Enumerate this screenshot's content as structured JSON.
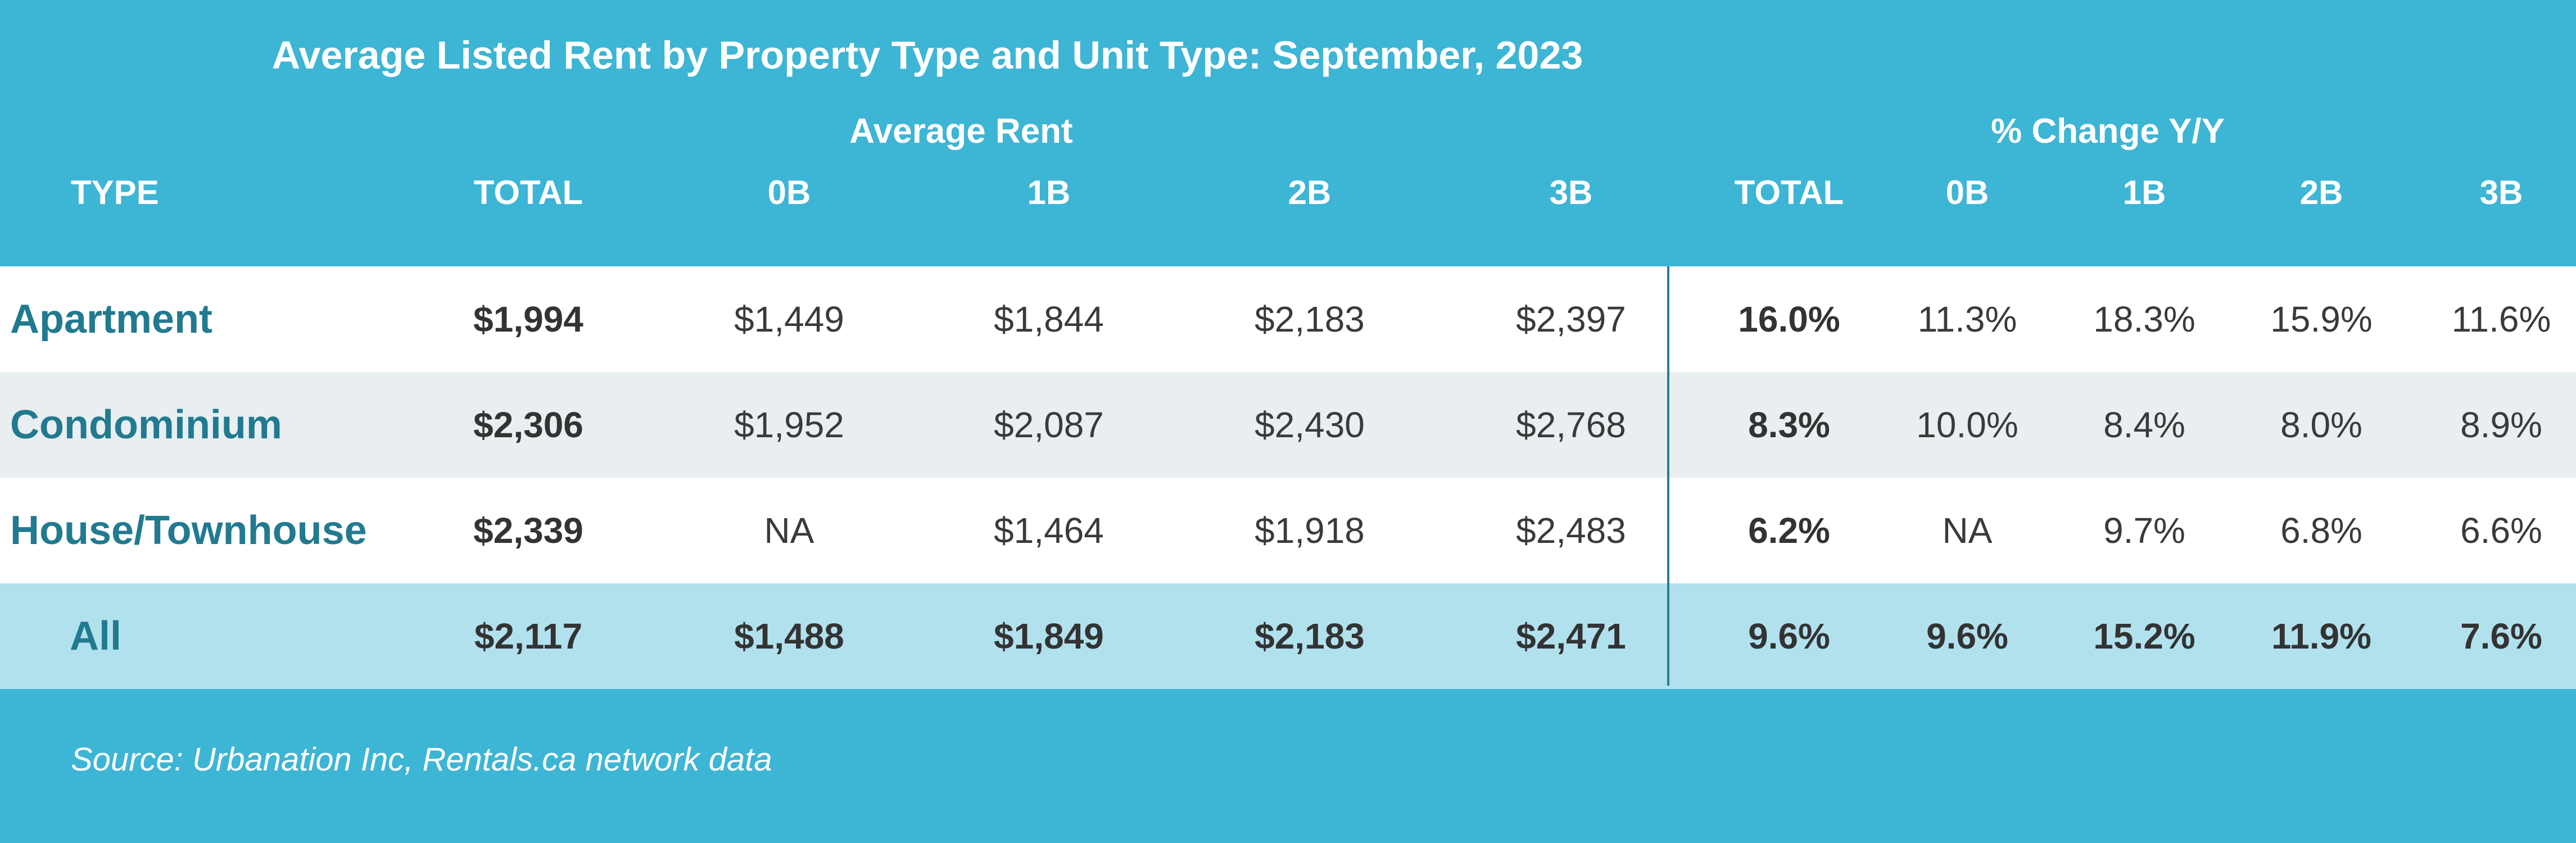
{
  "chart_data": {
    "type": "table",
    "title": "Average Listed Rent by Property Type and Unit Type: September, 2023",
    "column_groups": [
      {
        "label": "Average Rent",
        "columns": [
          "TOTAL",
          "0B",
          "1B",
          "2B",
          "3B"
        ]
      },
      {
        "label": "% Change Y/Y",
        "columns": [
          "TOTAL",
          "0B",
          "1B",
          "2B",
          "3B"
        ]
      }
    ],
    "type_header": "TYPE",
    "columns": [
      "TOTAL",
      "0B",
      "1B",
      "2B",
      "3B",
      "TOTAL",
      "0B",
      "1B",
      "2B",
      "3B"
    ],
    "rows": [
      {
        "type": "Apartment",
        "cells": [
          "$1,994",
          "$1,449",
          "$1,844",
          "$2,183",
          "$2,397",
          "16.0%",
          "11.3%",
          "18.3%",
          "15.9%",
          "11.6%"
        ]
      },
      {
        "type": "Condominium",
        "cells": [
          "$2,306",
          "$1,952",
          "$2,087",
          "$2,430",
          "$2,768",
          "8.3%",
          "10.0%",
          "8.4%",
          "8.0%",
          "8.9%"
        ]
      },
      {
        "type": "House/Townhouse",
        "cells": [
          "$2,339",
          "NA",
          "$1,464",
          "$1,918",
          "$2,483",
          "6.2%",
          "NA",
          "9.7%",
          "6.8%",
          "6.6%"
        ]
      },
      {
        "type": "All",
        "cells": [
          "$2,117",
          "$1,488",
          "$1,849",
          "$2,183",
          "$2,471",
          "9.6%",
          "9.6%",
          "15.2%",
          "11.9%",
          "7.6%"
        ]
      }
    ],
    "source": "Source: Urbanation Inc, Rentals.ca network data"
  },
  "colors": {
    "header_background": "#3db5d5",
    "row_white": "#ffffff",
    "row_gray": "#e9eef0",
    "row_total": "#b2e1ee",
    "type_label": "#217a90",
    "divider": "#2a7d92"
  }
}
